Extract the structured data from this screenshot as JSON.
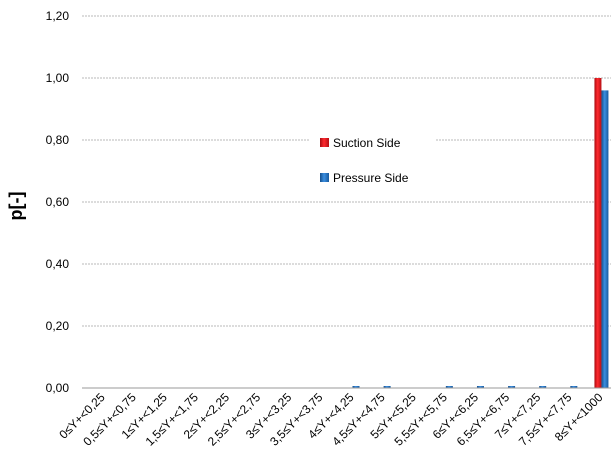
{
  "chart_data": {
    "type": "bar",
    "ylabel": "p[-]",
    "xlabel": "",
    "title": "",
    "ylim": [
      0,
      1.2
    ],
    "yticks": [
      "0,00",
      "0,20",
      "0,40",
      "0,60",
      "0,80",
      "1,00",
      "1,20"
    ],
    "grid": true,
    "legend_position": "center",
    "categories": [
      "0≤Y+<0,25",
      "0,5≤Y+<0,75",
      "1≤Y+<1,25",
      "1,5≤Y+<1,75",
      "2≤Y+<2,25",
      "2,5≤Y+<2,75",
      "3≤Y+<3,25",
      "3,5≤Y+<3,75",
      "4≤Y+<4,25",
      "4,5≤Y+<4,75",
      "5≤Y+<5,25",
      "5,5≤Y+<5,75",
      "6≤Y+<6,25",
      "6,5≤Y+<6,75",
      "7≤Y+<7,25",
      "7,5≤Y+<7,75",
      "8≤Y+<1000"
    ],
    "series": [
      {
        "name": "Suction Side",
        "color": "#e8141b",
        "values": [
          0,
          0,
          0,
          0,
          0,
          0,
          0,
          0,
          0,
          0,
          0,
          0,
          0,
          0,
          0,
          0,
          1.0
        ]
      },
      {
        "name": "Pressure Side",
        "color": "#1f6fc0",
        "values": [
          0,
          0,
          0,
          0,
          0,
          0,
          0,
          0,
          0.003,
          0.003,
          0,
          0.003,
          0.003,
          0.003,
          0.003,
          0.003,
          0.96
        ]
      }
    ]
  }
}
